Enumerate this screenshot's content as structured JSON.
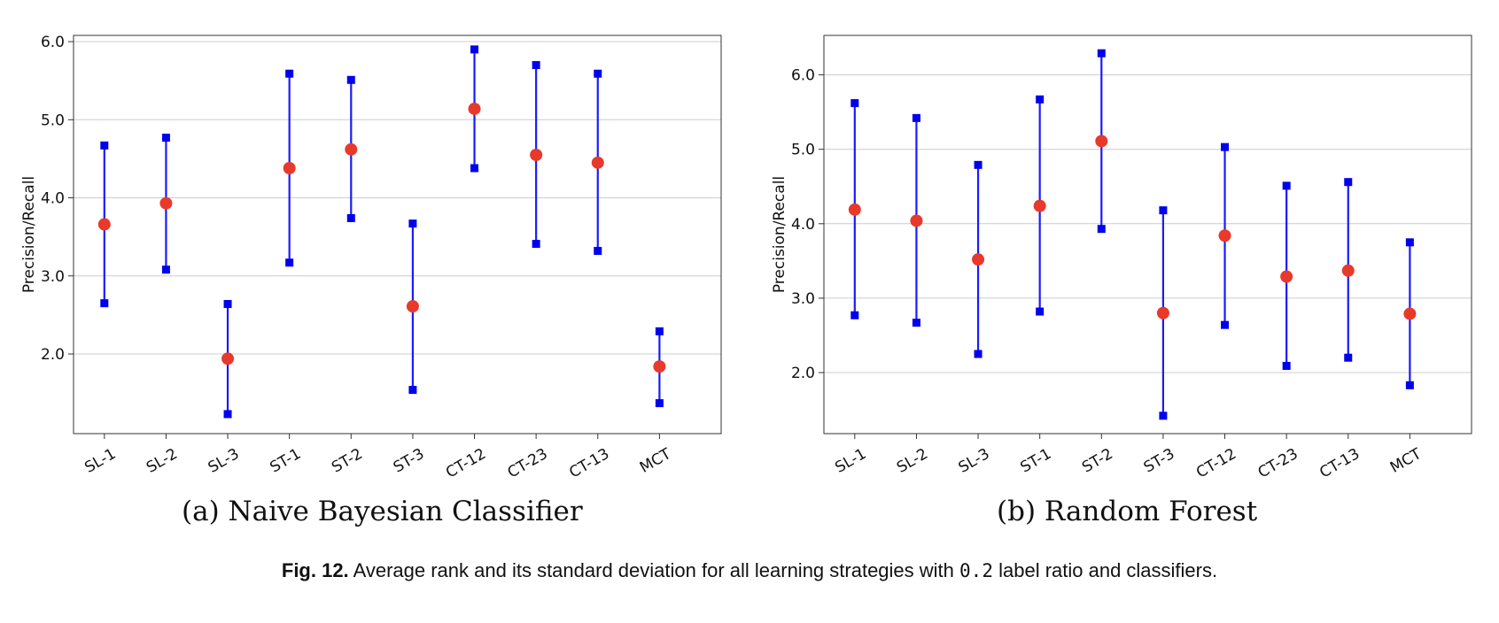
{
  "caption": {
    "label": "Fig. 12.",
    "text_before": "Average rank and its standard deviation for all learning strategies with",
    "code": "0.2",
    "text_after": "label ratio and classifiers."
  },
  "colors": {
    "line": "#1a1aff",
    "marker_end": "#0000ee",
    "mean": "#e8392b",
    "grid": "#cccccc",
    "axes": "#333333"
  },
  "chart_data": [
    {
      "type": "errorbar",
      "subcaption": "(a) Naive Bayesian Classifier",
      "ylabel": "Precision/Recall",
      "categories": [
        "SL-1",
        "SL-2",
        "SL-3",
        "ST-1",
        "ST-2",
        "ST-3",
        "CT-12",
        "CT-23",
        "CT-13",
        "MCT"
      ],
      "ylim": [
        0.98,
        6.08
      ],
      "yticks": [
        2.0,
        3.0,
        4.0,
        5.0,
        6.0
      ],
      "ytick_labels": [
        "2.0",
        "3.0",
        "4.0",
        "5.0",
        "6.0"
      ],
      "grid": "horizontal",
      "series": [
        {
          "mean": [
            3.66,
            3.93,
            1.94,
            4.38,
            4.62,
            2.61,
            5.14,
            4.55,
            4.45,
            1.84
          ],
          "upper": [
            4.67,
            4.77,
            2.64,
            5.59,
            5.51,
            3.67,
            5.9,
            5.7,
            5.59,
            2.29
          ],
          "lower": [
            2.65,
            3.08,
            1.23,
            3.17,
            3.74,
            1.54,
            4.38,
            3.41,
            3.32,
            1.37
          ]
        }
      ]
    },
    {
      "type": "errorbar",
      "subcaption": "(b) Random Forest",
      "ylabel": "Precision/Recall",
      "categories": [
        "SL-1",
        "SL-2",
        "SL-3",
        "ST-1",
        "ST-2",
        "ST-3",
        "CT-12",
        "CT-23",
        "CT-13",
        "MCT"
      ],
      "ylim": [
        1.18,
        6.53
      ],
      "yticks": [
        2.0,
        3.0,
        4.0,
        5.0,
        6.0
      ],
      "ytick_labels": [
        "2.0",
        "3.0",
        "4.0",
        "5.0",
        "6.0"
      ],
      "grid": "horizontal",
      "series": [
        {
          "mean": [
            4.19,
            4.04,
            3.52,
            4.24,
            5.11,
            2.8,
            3.84,
            3.29,
            3.37,
            2.79
          ],
          "upper": [
            5.62,
            5.42,
            4.79,
            5.67,
            6.29,
            4.18,
            5.03,
            4.51,
            4.56,
            3.75
          ],
          "lower": [
            2.77,
            2.67,
            2.25,
            2.82,
            3.93,
            1.42,
            2.64,
            2.09,
            2.2,
            1.83
          ]
        }
      ]
    }
  ]
}
